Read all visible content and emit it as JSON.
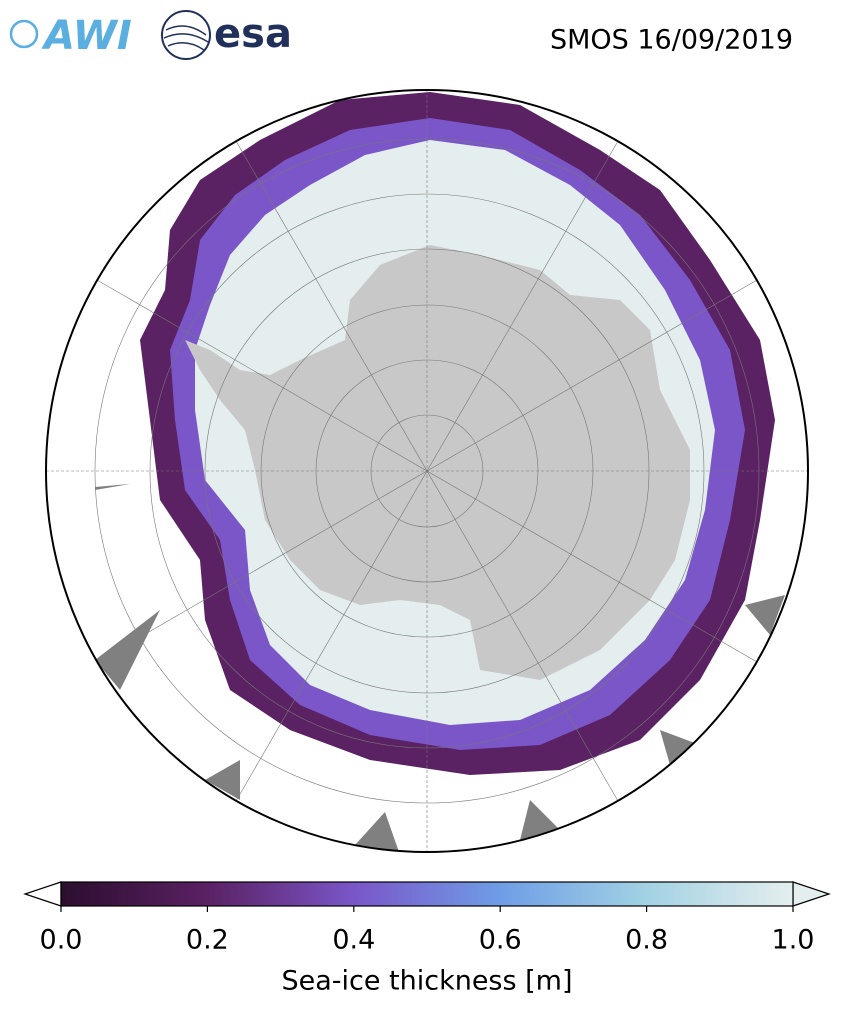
{
  "header": {
    "logos": [
      "AWI",
      "esa"
    ],
    "title": "SMOS 16/09/2019"
  },
  "colorbar": {
    "label": "Sea-ice thickness [m]",
    "lim": [
      0,
      1
    ],
    "ticks": [
      {
        "value": 0,
        "label": "0.0"
      },
      {
        "value": 0.2,
        "label": "0.2"
      },
      {
        "value": 0.4,
        "label": "0.4"
      },
      {
        "value": 0.6,
        "label": "0.6"
      },
      {
        "value": 0.8,
        "label": "0.8"
      },
      {
        "value": 1,
        "label": "1.0"
      }
    ],
    "colors": [
      "#2b0e2e",
      "#5a2163",
      "#7a56c8",
      "#6e9de6",
      "#a2d2e3",
      "#e4eeee"
    ],
    "extend": "both"
  }
}
